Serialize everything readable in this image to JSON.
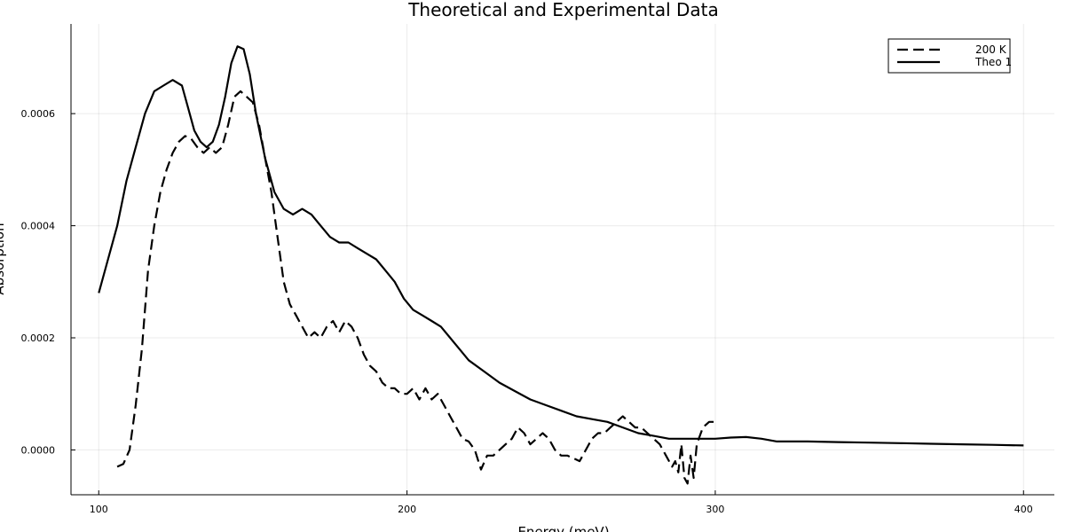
{
  "chart_data": {
    "type": "line",
    "title": "Theoretical and Experimental Data",
    "xlabel": "Energy (meV)",
    "ylabel": "Absorption",
    "xlim": [
      91,
      410
    ],
    "ylim": [
      -8e-05,
      0.00076
    ],
    "xticks": [
      100,
      200,
      300,
      400
    ],
    "xtick_labels": [
      "100",
      "200",
      "300",
      "400"
    ],
    "yticks": [
      0.0,
      0.0002,
      0.0004,
      0.0006
    ],
    "ytick_labels": [
      "0.0000",
      "0.0002",
      "0.0004",
      "0.0006"
    ],
    "grid": true,
    "legend_position": "top-right",
    "series": [
      {
        "name": "200 K",
        "style": "dashed",
        "color": "#000000",
        "x": [
          106,
          108,
          110,
          112,
          114,
          116,
          118,
          120,
          122,
          124,
          126,
          128,
          130,
          132,
          134,
          136,
          138,
          140,
          142,
          144,
          146,
          148,
          150,
          152,
          154,
          156,
          158,
          160,
          162,
          164,
          166,
          168,
          170,
          172,
          174,
          176,
          178,
          180,
          182,
          184,
          186,
          188,
          190,
          192,
          194,
          196,
          198,
          200,
          202,
          204,
          206,
          208,
          210,
          212,
          214,
          216,
          218,
          220,
          222,
          224,
          226,
          228,
          230,
          232,
          234,
          236,
          238,
          240,
          242,
          244,
          246,
          248,
          250,
          252,
          254,
          256,
          258,
          260,
          262,
          264,
          266,
          268,
          270,
          272,
          274,
          276,
          278,
          280,
          282,
          284,
          286,
          287,
          288,
          289,
          290,
          291,
          292,
          293,
          294,
          296,
          298,
          300
        ],
        "y": [
          -3e-05,
          -2.5e-05,
          0.0,
          8e-05,
          0.00018,
          0.00032,
          0.0004,
          0.00046,
          0.0005,
          0.00053,
          0.00055,
          0.00056,
          0.000555,
          0.00054,
          0.00053,
          0.00054,
          0.00053,
          0.00054,
          0.00058,
          0.00063,
          0.00064,
          0.00063,
          0.00062,
          0.00058,
          0.00052,
          0.00046,
          0.00038,
          0.0003,
          0.00026,
          0.00024,
          0.00022,
          0.0002,
          0.00021,
          0.0002,
          0.00022,
          0.00023,
          0.00021,
          0.00023,
          0.00022,
          0.0002,
          0.00017,
          0.00015,
          0.00014,
          0.00012,
          0.00011,
          0.00011,
          0.0001,
          0.0001,
          0.00011,
          9e-05,
          0.00011,
          9e-05,
          0.0001,
          8e-05,
          6e-05,
          4e-05,
          2e-05,
          1.5e-05,
          0.0,
          -3.5e-05,
          -1e-05,
          -1e-05,
          0.0,
          1e-05,
          2e-05,
          4e-05,
          3e-05,
          1e-05,
          2e-05,
          3e-05,
          2e-05,
          0.0,
          -1e-05,
          -1e-05,
          -1.5e-05,
          -2e-05,
          0.0,
          2e-05,
          3e-05,
          3e-05,
          4e-05,
          5e-05,
          6e-05,
          5e-05,
          4e-05,
          4e-05,
          3e-05,
          2e-05,
          1e-05,
          -1e-05,
          -3e-05,
          -2e-05,
          -4e-05,
          1e-05,
          -5e-05,
          -6e-05,
          -1e-05,
          -5e-05,
          1e-05,
          4e-05,
          5e-05,
          5e-05
        ]
      },
      {
        "name": "Theo 1",
        "style": "solid",
        "color": "#000000",
        "x": [
          100,
          103,
          106,
          109,
          112,
          115,
          118,
          121,
          124,
          127,
          129,
          131,
          133,
          135,
          137,
          139,
          141,
          143,
          145,
          147,
          149,
          151,
          154,
          157,
          160,
          163,
          166,
          169,
          172,
          175,
          178,
          181,
          184,
          187,
          190,
          193,
          196,
          199,
          202,
          205,
          208,
          211,
          214,
          217,
          220,
          225,
          230,
          235,
          240,
          245,
          250,
          255,
          260,
          265,
          270,
          275,
          280,
          285,
          290,
          295,
          300,
          305,
          310,
          315,
          320,
          330,
          340,
          350,
          360,
          370,
          380,
          390,
          400
        ],
        "y": [
          0.00028,
          0.00034,
          0.0004,
          0.00048,
          0.00054,
          0.0006,
          0.00064,
          0.00065,
          0.00066,
          0.00065,
          0.00061,
          0.00057,
          0.00055,
          0.00054,
          0.00055,
          0.00058,
          0.00063,
          0.00069,
          0.00072,
          0.000715,
          0.00067,
          0.0006,
          0.00052,
          0.00046,
          0.00043,
          0.00042,
          0.00043,
          0.00042,
          0.0004,
          0.00038,
          0.00037,
          0.00037,
          0.00036,
          0.00035,
          0.00034,
          0.00032,
          0.0003,
          0.00027,
          0.00025,
          0.00024,
          0.00023,
          0.00022,
          0.0002,
          0.00018,
          0.00016,
          0.00014,
          0.00012,
          0.000105,
          9e-05,
          8e-05,
          7e-05,
          6e-05,
          5.5e-05,
          5e-05,
          4e-05,
          3e-05,
          2.5e-05,
          2e-05,
          2e-05,
          2e-05,
          2e-05,
          2.2e-05,
          2.3e-05,
          2e-05,
          1.5e-05,
          1.5e-05,
          1.4e-05,
          1.3e-05,
          1.2e-05,
          1.1e-05,
          1e-05,
          9e-06,
          8e-06
        ]
      }
    ]
  }
}
